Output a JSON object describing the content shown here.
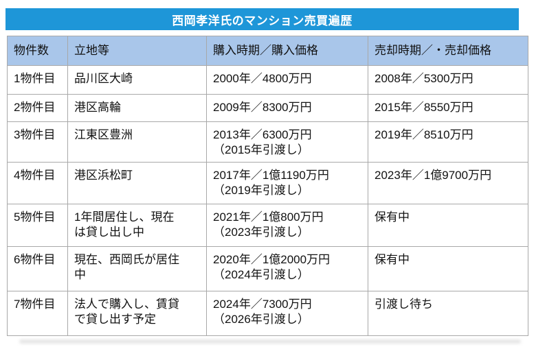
{
  "title": "西岡孝洋氏のマンション売買遍歴",
  "colors": {
    "title_bg": "#1e96d8",
    "title_text": "#ffffff",
    "header_bg": "#a9c6ea",
    "grid_border": "#a8a8a8",
    "body_text": "#111111"
  },
  "chart_data": {
    "type": "table",
    "title": "西岡孝洋氏のマンション売買遍歴",
    "columns": [
      "物件数",
      "立地等",
      "購入時期／購入価格",
      "売却時期／・売却価格"
    ],
    "rows": [
      [
        "1物件目",
        "品川区大崎",
        "2000年／4800万円",
        "2008年／5300万円"
      ],
      [
        "2物件目",
        "港区高輪",
        "2009年／8300万円",
        "2015年／8550万円"
      ],
      [
        "3物件目",
        "江東区豊洲",
        "2013年／6300万円\n（2015年引渡し）",
        "2019年／8510万円"
      ],
      [
        "4物件目",
        "港区浜松町",
        "2017年／1億1190万円\n（2019年引渡し）",
        "2023年／1億9700万円"
      ],
      [
        "5物件目",
        "1年間居住し、現在\nは貸し出し中",
        "2021年／1億800万円\n（2023年引渡し）",
        "保有中"
      ],
      [
        "6物件目",
        "現在、西岡氏が居住\n中",
        "2020年／1億2000万円\n（2024年引渡し）",
        "保有中"
      ],
      [
        "7物件目",
        "法人で購入し、賃貸\nで貸し出す予定",
        "2024年／7300万円\n（2026年引渡し）",
        "引渡し待ち"
      ]
    ]
  }
}
